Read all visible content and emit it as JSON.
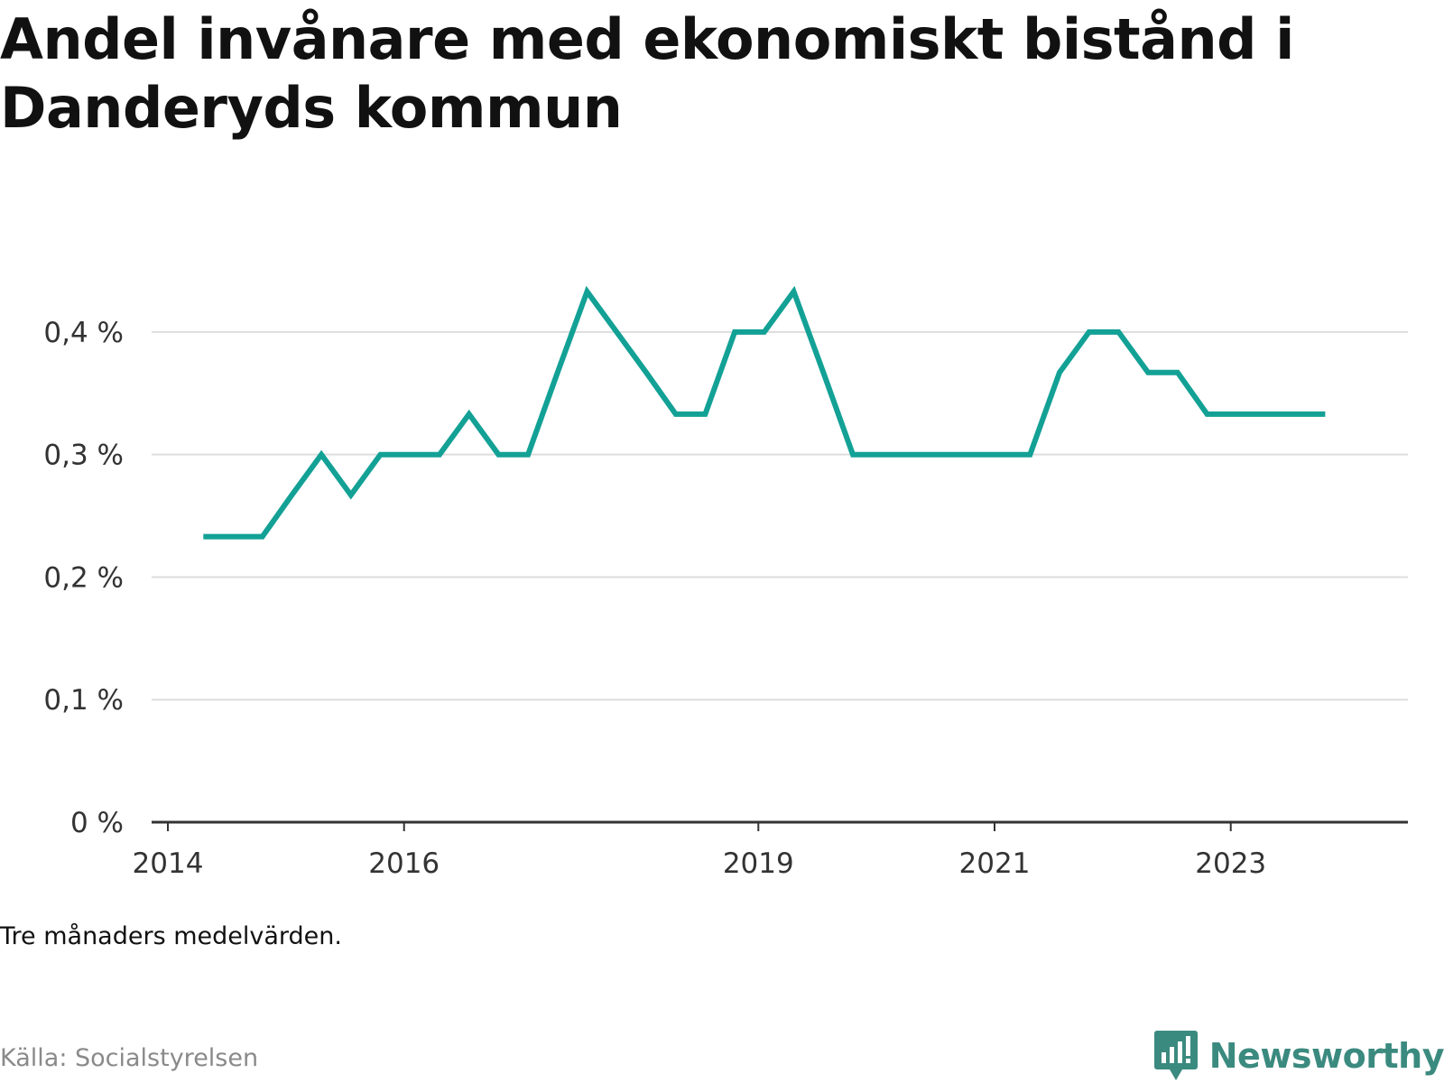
{
  "title": "Andel invånare med ekonomiskt bistånd i Danderyds kommun",
  "note": "Tre månaders medelvärden.",
  "source": "Källa: Socialstyrelsen",
  "brand": {
    "name": "Newsworthy",
    "logo_icon": "bar-chart-badge-icon"
  },
  "colors": {
    "line": "#13a196",
    "grid": "#dddddd",
    "axis": "#333333",
    "brand": "#3b8a7f"
  },
  "chart_data": {
    "type": "line",
    "title": "Andel invånare med ekonomiskt bistånd i Danderyds kommun",
    "xlabel": "",
    "ylabel": "",
    "y_unit": "%",
    "ylim": [
      0,
      0.45
    ],
    "yticks": [
      0,
      0.1,
      0.2,
      0.3,
      0.4
    ],
    "ytick_labels": [
      "0 %",
      "0,1 %",
      "0,2 %",
      "0,3 %",
      "0,4 %"
    ],
    "xlim": [
      2014.0,
      2024.5
    ],
    "xticks": [
      2014,
      2016,
      2019,
      2021,
      2023
    ],
    "xtick_labels": [
      "2014",
      "2016",
      "2019",
      "2021",
      "2023"
    ],
    "grid": true,
    "series": [
      {
        "x": [
          2014.3,
          2014.55,
          2014.8,
          2015.05,
          2015.3,
          2015.55,
          2015.8,
          2016.05,
          2016.3,
          2016.55,
          2016.8,
          2017.05,
          2017.3,
          2017.55,
          2017.8,
          2018.05,
          2018.3,
          2018.55,
          2018.8,
          2019.05,
          2019.3,
          2019.55,
          2019.8,
          2020.05,
          2020.3,
          2020.55,
          2020.8,
          2021.05,
          2021.3,
          2021.55,
          2021.8,
          2022.05,
          2022.3,
          2022.55,
          2022.8,
          2023.05,
          2023.3,
          2023.55,
          2023.8
        ],
        "values": [
          0.233,
          0.233,
          0.233,
          0.267,
          0.3,
          0.267,
          0.3,
          0.3,
          0.3,
          0.333,
          0.3,
          0.3,
          0.367,
          0.433,
          0.4,
          0.367,
          0.333,
          0.333,
          0.4,
          0.4,
          0.433,
          0.367,
          0.3,
          0.3,
          0.3,
          0.3,
          0.3,
          0.3,
          0.3,
          0.367,
          0.4,
          0.4,
          0.367,
          0.367,
          0.333,
          0.333,
          0.333,
          0.333,
          0.333
        ]
      }
    ]
  }
}
